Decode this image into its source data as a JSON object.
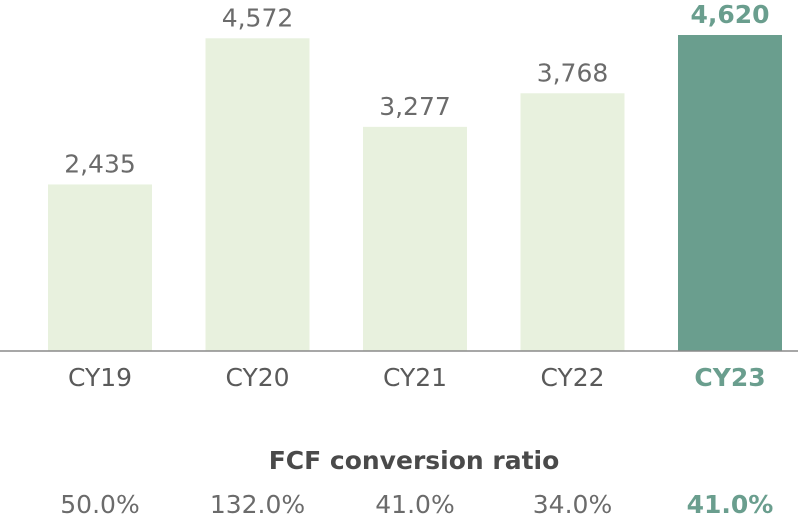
{
  "chart_data": {
    "type": "bar",
    "title": "",
    "xlabel": "",
    "ylabel": "",
    "categories": [
      "CY19",
      "CY20",
      "CY21",
      "CY22",
      "CY23"
    ],
    "values": [
      2435,
      4572,
      3277,
      3768,
      4620
    ],
    "value_labels": [
      "2,435",
      "4,572",
      "3,277",
      "3,768",
      "4,620"
    ],
    "highlight_index": 4,
    "ylim": [
      0,
      4620
    ],
    "grid": false,
    "colors": {
      "bar": "#e8f1de",
      "highlight": "#6a9e8e",
      "axis": "#8a8a8a"
    }
  },
  "ratio": {
    "title": "FCF conversion ratio",
    "values": [
      "50.0%",
      "132.0%",
      "41.0%",
      "34.0%",
      "41.0%"
    ]
  }
}
